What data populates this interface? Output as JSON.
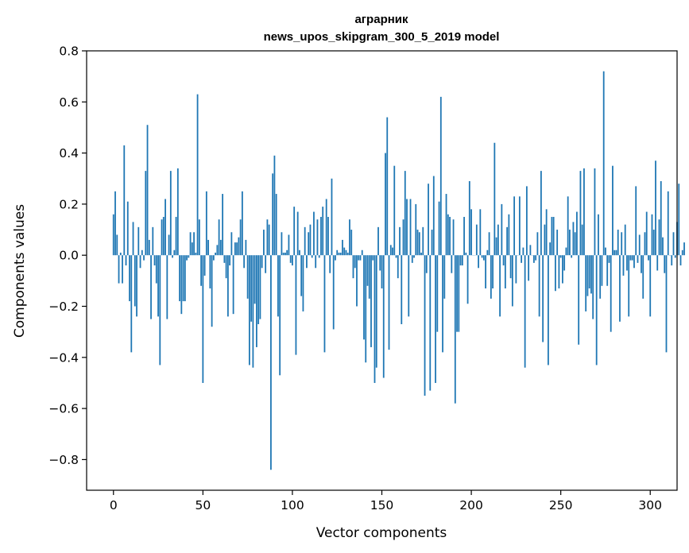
{
  "chart_data": {
    "type": "bar",
    "title_line1": "аграрник",
    "title_line2": "news_upos_skipgram_300_5_2019 model",
    "xlabel": "Vector components",
    "ylabel": "Components values",
    "xlim": [
      -15,
      315
    ],
    "ylim": [
      -0.92,
      0.8
    ],
    "xticks": [
      0,
      50,
      100,
      150,
      200,
      250,
      300
    ],
    "xtick_labels": [
      "0",
      "50",
      "100",
      "150",
      "200",
      "250",
      "300"
    ],
    "yticks": [
      -0.8,
      -0.6,
      -0.4,
      -0.2,
      0.0,
      0.2,
      0.4,
      0.6,
      0.8
    ],
    "ytick_labels": [
      "−0.8",
      "−0.6",
      "−0.4",
      "−0.2",
      "0.0",
      "0.2",
      "0.4",
      "0.6",
      "0.8"
    ],
    "bar_color": "#1f77b4",
    "values": [
      0.16,
      0.25,
      0.08,
      -0.11,
      0.01,
      -0.11,
      0.43,
      -0.04,
      0.21,
      -0.18,
      -0.38,
      0.13,
      -0.2,
      -0.24,
      0.11,
      -0.05,
      0.02,
      -0.02,
      0.33,
      0.51,
      0.06,
      -0.25,
      0.11,
      -0.04,
      -0.11,
      -0.24,
      -0.43,
      0.14,
      0.15,
      0.22,
      -0.25,
      0.08,
      0.33,
      -0.01,
      0.02,
      0.15,
      0.34,
      -0.18,
      -0.23,
      -0.18,
      -0.18,
      -0.02,
      -0.01,
      0.09,
      0.05,
      0.09,
      0.01,
      0.63,
      0.14,
      -0.12,
      -0.5,
      -0.08,
      0.25,
      0.06,
      -0.13,
      -0.28,
      -0.02,
      0.01,
      0.04,
      0.14,
      0.06,
      0.24,
      -0.03,
      -0.09,
      -0.24,
      -0.04,
      0.09,
      -0.23,
      0.05,
      0.05,
      0.07,
      0.14,
      0.25,
      -0.05,
      0.06,
      -0.17,
      -0.43,
      -0.26,
      -0.44,
      -0.19,
      -0.36,
      -0.27,
      -0.25,
      -0.05,
      0.1,
      -0.07,
      0.14,
      0.12,
      -0.84,
      0.32,
      0.39,
      0.24,
      -0.24,
      -0.47,
      0.09,
      0.01,
      0.01,
      0.02,
      0.08,
      -0.03,
      -0.04,
      0.19,
      -0.39,
      0.17,
      0.02,
      -0.16,
      -0.22,
      0.11,
      -0.05,
      0.09,
      0.12,
      -0.01,
      0.17,
      -0.05,
      0.14,
      -0.01,
      0.15,
      0.19,
      -0.38,
      0.22,
      0.15,
      -0.07,
      0.3,
      -0.29,
      -0.02,
      0.02,
      0.01,
      0.01,
      0.06,
      0.03,
      0.02,
      0.01,
      0.14,
      0.1,
      -0.09,
      -0.05,
      -0.2,
      -0.02,
      -0.02,
      0.02,
      -0.33,
      -0.42,
      -0.12,
      -0.17,
      -0.36,
      -0.02,
      -0.5,
      -0.44,
      0.11,
      -0.06,
      -0.13,
      -0.48,
      0.4,
      0.54,
      -0.37,
      0.04,
      0.03,
      0.35,
      -0.01,
      -0.09,
      0.11,
      -0.27,
      0.14,
      0.33,
      0.22,
      -0.24,
      0.22,
      -0.03,
      -0.01,
      0.2,
      0.1,
      0.09,
      0.01,
      0.11,
      -0.55,
      -0.07,
      0.28,
      -0.53,
      0.1,
      0.31,
      -0.5,
      -0.3,
      0.21,
      0.62,
      -0.38,
      -0.17,
      0.24,
      0.16,
      0.15,
      -0.07,
      0.14,
      -0.58,
      -0.3,
      -0.3,
      -0.04,
      -0.04,
      0.15,
      0.01,
      -0.19,
      0.29,
      0.18,
      0.0,
      0.0,
      0.12,
      -0.05,
      0.18,
      -0.01,
      -0.02,
      -0.13,
      0.02,
      0.09,
      -0.17,
      -0.13,
      0.44,
      0.07,
      0.12,
      -0.24,
      0.2,
      -0.04,
      -0.13,
      0.11,
      0.16,
      -0.09,
      -0.2,
      0.23,
      -0.11,
      0.0,
      0.23,
      -0.03,
      0.03,
      -0.44,
      0.27,
      -0.1,
      0.04,
      0.0,
      -0.03,
      -0.02,
      0.09,
      -0.24,
      0.33,
      -0.34,
      0.12,
      0.18,
      -0.43,
      0.05,
      0.15,
      0.15,
      -0.14,
      0.1,
      -0.13,
      -0.01,
      -0.11,
      -0.06,
      0.03,
      0.23,
      0.1,
      -0.01,
      0.13,
      0.09,
      0.17,
      -0.35,
      0.33,
      0.12,
      0.34,
      -0.22,
      -0.16,
      -0.13,
      -0.15,
      -0.25,
      0.34,
      -0.43,
      0.16,
      -0.17,
      -0.12,
      0.72,
      0.03,
      -0.12,
      -0.03,
      -0.3,
      0.35,
      0.02,
      0.02,
      0.1,
      -0.26,
      0.09,
      -0.08,
      0.12,
      -0.06,
      -0.24,
      -0.02,
      -0.02,
      -0.05,
      0.27,
      -0.03,
      0.08,
      -0.07,
      -0.17,
      0.09,
      0.17,
      -0.02,
      -0.24,
      0.16,
      0.1,
      0.37,
      -0.06,
      0.14,
      0.29,
      0.07,
      -0.07,
      -0.38,
      0.25,
      0.0,
      -0.04,
      0.09,
      -0.01,
      0.13,
      0.28,
      -0.04,
      0.02,
      0.05
    ]
  }
}
